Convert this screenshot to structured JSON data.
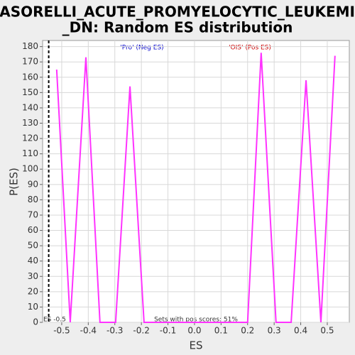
{
  "chart_data": {
    "type": "line",
    "title": [
      "CASORELLI_ACUTE_PROMYELOCYTIC_LEUKEMIA",
      "_DN: Random ES distribution"
    ],
    "x_label": "ES",
    "y_label": "P(ES)",
    "x": [
      -0.519,
      -0.468,
      -0.409,
      -0.356,
      -0.297,
      -0.243,
      -0.19,
      0.2,
      0.251,
      0.307,
      0.364,
      0.42,
      0.476,
      0.529
    ],
    "series": [
      {
        "name": "P(ES)",
        "color": "#ff33ff",
        "values": [
          165,
          0,
          173,
          0,
          0,
          154,
          0,
          0,
          176,
          0,
          0,
          158,
          0,
          174
        ]
      }
    ],
    "xlim": [
      -0.572,
      0.583
    ],
    "ylim": [
      0,
      184
    ],
    "xticks": [
      -0.5,
      -0.4,
      -0.3,
      -0.2,
      -0.1,
      {
        "value": 0,
        "label": "0.0"
      },
      0.1,
      0.2,
      0.3,
      0.4,
      0.5
    ],
    "yticks": [
      0,
      10,
      20,
      30,
      40,
      50,
      60,
      70,
      80,
      90,
      100,
      110,
      120,
      130,
      140,
      150,
      160,
      170,
      180
    ],
    "grid": true,
    "es_marker": {
      "value": -0.549,
      "label": "ES -0.5"
    },
    "annotations": {
      "neg": "'Pro' (Neg ES)",
      "pos": "'OIS' (Pos ES)",
      "neg_color": "#0000cc",
      "pos_color": "#cc0000",
      "footer": "Sets with pos scores: 51%"
    }
  }
}
